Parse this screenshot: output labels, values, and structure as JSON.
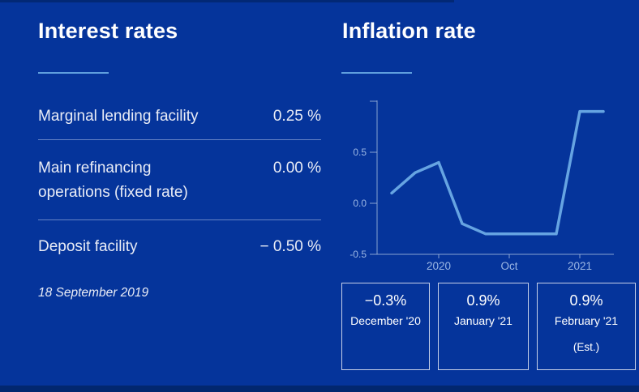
{
  "colors": {
    "bg": "#05349b",
    "strip": "#02276f",
    "text": "#ffffff",
    "muted": "#e9ecf6",
    "accent": "#5f9fde",
    "divider": "rgba(222,231,250,0.45)",
    "line": "#66a4e2",
    "axis": "#a9bedf",
    "ticktext": "#9db8e4",
    "boxborder": "#c6d0e8"
  },
  "interest": {
    "title": "Interest rates",
    "rows": [
      {
        "label": "Marginal lending facility",
        "value": "0.25 %"
      },
      {
        "label": "Main refinancing operations (fixed rate)",
        "value": "0.00 %"
      },
      {
        "label": "Deposit facility",
        "value": "− 0.50 %"
      }
    ],
    "date": "18 September 2019"
  },
  "inflation": {
    "title": "Inflation rate",
    "boxes": [
      {
        "value": "−0.3%",
        "label": "December '20",
        "note": ""
      },
      {
        "value": "0.9%",
        "label": "January '21",
        "note": ""
      },
      {
        "value": "0.9%",
        "label": "February '21",
        "note": "(Est.)"
      }
    ]
  },
  "chart_data": {
    "type": "line",
    "title": "Inflation rate",
    "x": [
      0,
      1,
      2,
      3,
      4,
      5,
      6,
      7,
      8,
      9
    ],
    "values": [
      0.1,
      0.3,
      0.4,
      -0.2,
      -0.3,
      -0.3,
      -0.3,
      -0.3,
      0.9,
      0.9
    ],
    "x_ticks": [
      {
        "index": 2,
        "label": "2020"
      },
      {
        "index": 5,
        "label": "Oct"
      },
      {
        "index": 8,
        "label": "2021"
      }
    ],
    "y_ticks": [
      {
        "value": 1.0,
        "label": ""
      },
      {
        "value": 0.5,
        "label": "0.5"
      },
      {
        "value": 0.0,
        "label": "0.0"
      },
      {
        "value": -0.5,
        "label": "-0.5"
      }
    ],
    "ylim": [
      -0.5,
      1.0
    ],
    "grid": false,
    "legend": false,
    "line_color": "#66a4e2"
  }
}
